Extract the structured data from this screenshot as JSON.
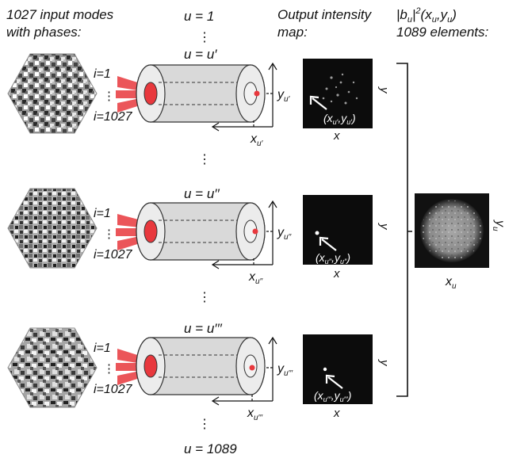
{
  "header": {
    "input_line1": "1027 input modes",
    "input_line2": "with phases:",
    "output_line1": "Output intensity",
    "output_line2": "map:",
    "right_line1": "|b",
    "right_line1_sub": "u",
    "right_line1_rest": "|",
    "right_line1_sup": "2",
    "right_line1_tail": "(x",
    "right_line1_sub2": "u",
    "right_line1_comma": ",y",
    "right_line1_sub3": "u",
    "right_line1_close": ")",
    "right_line2": "1089 elements:"
  },
  "u_labels": {
    "u_first": "u = 1",
    "u_prime": "u = u′",
    "u_dprime": "u = u′′",
    "u_tprime": "u = u′′′",
    "u_last": "u = 1089",
    "vdots": "⋮"
  },
  "rows": [
    {
      "i_first": "i=1",
      "i_dots": "⋮",
      "i_last": "i=1027",
      "x_base": "x",
      "x_sub": "u′",
      "y_base": "y",
      "y_sub": "u′",
      "coord": "(x",
      "coord_sub1": "u′",
      "coord_mid": ",y",
      "coord_sub2": "u′",
      "coord_end": ")",
      "map_x": "x",
      "map_y": "y"
    },
    {
      "i_first": "i=1",
      "i_dots": "⋮",
      "i_last": "i=1027",
      "x_base": "x",
      "x_sub": "u′′",
      "y_base": "y",
      "y_sub": "u′′",
      "coord": "(x",
      "coord_sub1": "u′′",
      "coord_mid": ",y",
      "coord_sub2": "u′′",
      "coord_end": ")",
      "map_x": "x",
      "map_y": "y"
    },
    {
      "i_first": "i=1",
      "i_dots": "⋮",
      "i_last": "i=1027",
      "x_base": "x",
      "x_sub": "u′′′",
      "y_base": "y",
      "y_sub": "u′′′",
      "coord": "(x",
      "coord_sub1": "u′′′",
      "coord_mid": ",y",
      "coord_sub2": "u′′′",
      "coord_end": ")",
      "map_x": "x",
      "map_y": "y"
    }
  ],
  "result_map": {
    "x_base": "x",
    "x_sub": "u",
    "y_base": "y",
    "y_sub": "u"
  },
  "colors": {
    "beam": "#e8383d",
    "fiber_fill": "#d9d9d9",
    "fiber_face": "#ececec",
    "map_bg": "#0c0c0c",
    "spot": "#ffffff"
  }
}
